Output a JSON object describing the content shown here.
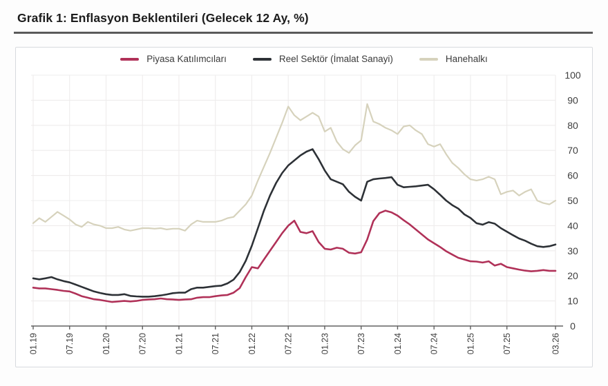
{
  "header": {
    "title": "Grafik 1: Enflasyon Beklentileri (Gelecek 12 Ay, %)"
  },
  "chart_data": {
    "type": "line",
    "title": "Grafik 1: Enflasyon Beklentileri (Gelecek 12 Ay, %)",
    "x_unit": "survey month (MM.YY)",
    "x_start": "01.2019",
    "x_end": "03.2026",
    "x_frequency": "monthly",
    "x_ticks": [
      {
        "label": "01.19",
        "month": 0
      },
      {
        "label": "07.19",
        "month": 6
      },
      {
        "label": "01.20",
        "month": 12
      },
      {
        "label": "07.20",
        "month": 18
      },
      {
        "label": "01.21",
        "month": 24
      },
      {
        "label": "07.21",
        "month": 30
      },
      {
        "label": "01.22",
        "month": 36
      },
      {
        "label": "07.22",
        "month": 42
      },
      {
        "label": "01.23",
        "month": 48
      },
      {
        "label": "07.23",
        "month": 54
      },
      {
        "label": "01.24",
        "month": 60
      },
      {
        "label": "07.24",
        "month": 66
      },
      {
        "label": "01.25",
        "month": 72
      },
      {
        "label": "07.25",
        "month": 78
      },
      {
        "label": "03.26",
        "month": 86
      }
    ],
    "ylim": [
      0,
      100
    ],
    "y_ticks": [
      0,
      10,
      20,
      30,
      40,
      50,
      60,
      70,
      80,
      90,
      100
    ],
    "y_axis_side": "right",
    "grid": true,
    "legend_position": "top-center",
    "series": [
      {
        "name": "Piyasa Katılımcıları",
        "color": "#b03158",
        "line_width": 2.6,
        "values": [
          15.3,
          15,
          15,
          14.7,
          14.4,
          14,
          13.8,
          12.9,
          11.9,
          11.3,
          10.7,
          10.4,
          10,
          9.6,
          9.8,
          10,
          9.8,
          10,
          10.4,
          10.6,
          10.7,
          11,
          10.7,
          10.6,
          10.4,
          10.6,
          10.7,
          11.3,
          11.5,
          11.5,
          11.9,
          12.2,
          12.4,
          13.3,
          15.1,
          19.5,
          23.5,
          23,
          26.5,
          30,
          33.5,
          37,
          40,
          42,
          37.5,
          37,
          37.8,
          33.5,
          30.8,
          30.5,
          31.2,
          30.8,
          29.2,
          28.9,
          29.4,
          34.5,
          41.8,
          45,
          46,
          45.3,
          44,
          42.2,
          40.5,
          38.5,
          36.5,
          34.5,
          33,
          31.5,
          29.8,
          28.5,
          27.2,
          26.5,
          25.8,
          25.7,
          25.3,
          25.8,
          24.1,
          24.8,
          23.5,
          23,
          22.5,
          22.1,
          21.8,
          22,
          22.3,
          22,
          22
        ]
      },
      {
        "name": "Reel Sektör (İmalat Sanayi)",
        "color": "#2d3136",
        "line_width": 2.6,
        "values": [
          19,
          18.6,
          19,
          19.5,
          18.6,
          17.9,
          17.4,
          16.5,
          15.6,
          14.7,
          13.8,
          13.2,
          12.7,
          12.4,
          12.4,
          12.7,
          12,
          11.8,
          11.7,
          11.7,
          11.9,
          12.2,
          12.6,
          13.1,
          13.3,
          13.3,
          14.7,
          15.3,
          15.3,
          15.6,
          15.9,
          16.1,
          17,
          18.5,
          21.5,
          26,
          32,
          39,
          46,
          52,
          57,
          61,
          64,
          66,
          68,
          69.5,
          70.5,
          66.5,
          62,
          58.5,
          57.5,
          56.5,
          53.5,
          51.5,
          50,
          57.5,
          58.5,
          58.8,
          59,
          59.3,
          56.3,
          55.3,
          55.5,
          55.7,
          56,
          56.3,
          54.5,
          52.3,
          50,
          48.2,
          46.8,
          44.5,
          43.1,
          41,
          40.4,
          41.4,
          40.8,
          39,
          37.6,
          36.2,
          34.9,
          34,
          32.8,
          31.8,
          31.5,
          31.8,
          32.5
        ]
      },
      {
        "name": "Hanehalkı",
        "color": "#d6d2bc",
        "line_width": 2.2,
        "values": [
          41,
          43,
          41.5,
          43.5,
          45.5,
          44,
          42.5,
          40.5,
          39.5,
          41.5,
          40.5,
          40,
          39,
          39,
          39.5,
          38.5,
          38,
          38.5,
          39,
          39,
          38.8,
          39,
          38.5,
          38.8,
          38.8,
          38,
          40.5,
          42,
          41.5,
          41.5,
          41.5,
          42,
          43,
          43.5,
          46,
          48.5,
          52,
          58,
          63.5,
          69,
          75,
          81,
          87.5,
          84,
          82,
          83.5,
          85,
          83.5,
          77.5,
          79,
          73.5,
          70.5,
          69,
          72,
          74,
          88.5,
          81.5,
          80.5,
          79,
          78,
          76.5,
          79.5,
          80,
          78,
          76.5,
          72.5,
          71.5,
          72.5,
          68.5,
          65,
          63,
          60.5,
          58.5,
          58,
          58.5,
          59.5,
          58.5,
          52.5,
          53.5,
          54,
          52,
          53.5,
          54.5,
          50,
          49,
          48.5,
          50
        ]
      }
    ],
    "style": {
      "grid_color": "#eeecec",
      "axis_color": "#606060",
      "tick_label_color": "#3e3e3e",
      "plot_background": "#ffffff"
    }
  }
}
